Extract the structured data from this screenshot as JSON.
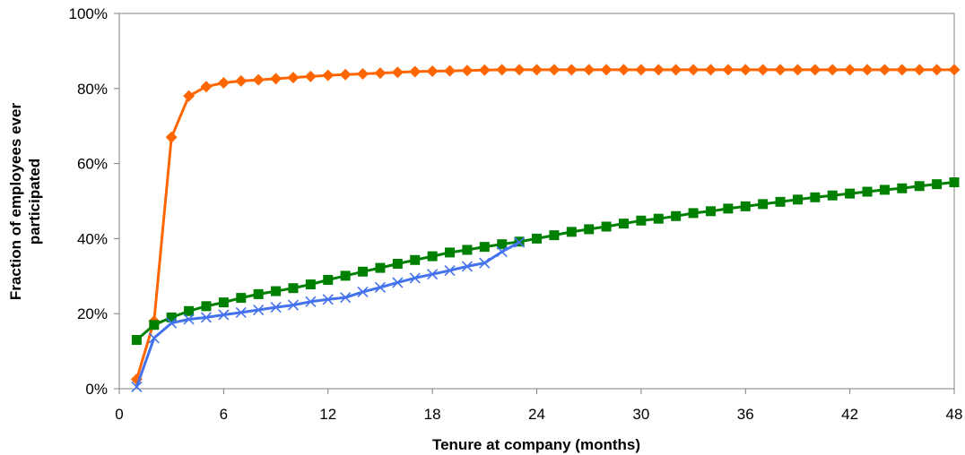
{
  "chart_data": {
    "type": "line",
    "xlabel": "Tenure at company (months)",
    "ylabel_lines": [
      "Fraction of employees ever",
      "participated"
    ],
    "xlim": [
      0,
      48
    ],
    "ylim": [
      0,
      100
    ],
    "x_ticks": [
      0,
      6,
      12,
      18,
      24,
      30,
      36,
      42,
      48
    ],
    "y_ticks": [
      0,
      20,
      40,
      60,
      80,
      100
    ],
    "y_tick_labels": [
      "0%",
      "20%",
      "40%",
      "60%",
      "80%",
      "100%"
    ],
    "grid": false,
    "legend": "none",
    "series": [
      {
        "color": "#FF6600",
        "marker": "diamond",
        "x": [
          1,
          2,
          3,
          4,
          5,
          6,
          7,
          8,
          9,
          10,
          11,
          12,
          13,
          14,
          15,
          16,
          17,
          18,
          19,
          20,
          21,
          22,
          23,
          24,
          25,
          26,
          27,
          28,
          29,
          30,
          31,
          32,
          33,
          34,
          35,
          36,
          37,
          38,
          39,
          40,
          41,
          42,
          43,
          44,
          45,
          46,
          47,
          48
        ],
        "values": [
          2.5,
          18,
          67,
          78,
          80.5,
          81.5,
          82,
          82.3,
          82.6,
          82.9,
          83.2,
          83.5,
          83.7,
          83.9,
          84.1,
          84.3,
          84.5,
          84.6,
          84.7,
          84.8,
          84.9,
          85,
          85,
          85,
          85,
          85,
          85,
          85,
          85,
          85,
          85,
          85,
          85,
          85,
          85,
          85,
          85,
          85,
          85,
          85,
          85,
          85,
          85,
          85,
          85,
          85,
          85,
          85
        ]
      },
      {
        "color": "#008000",
        "marker": "square",
        "x": [
          1,
          2,
          3,
          4,
          5,
          6,
          7,
          8,
          9,
          10,
          11,
          12,
          13,
          14,
          15,
          16,
          17,
          18,
          19,
          20,
          21,
          22,
          23,
          24,
          25,
          26,
          27,
          28,
          29,
          30,
          31,
          32,
          33,
          34,
          35,
          36,
          37,
          38,
          39,
          40,
          41,
          42,
          43,
          44,
          45,
          46,
          47,
          48
        ],
        "values": [
          13,
          17,
          19,
          20.7,
          22,
          23,
          24.2,
          25.2,
          26,
          26.8,
          27.8,
          29,
          30.1,
          31.2,
          32.2,
          33.3,
          34.3,
          35.3,
          36.3,
          37,
          37.8,
          38.5,
          39.2,
          40,
          40.9,
          41.8,
          42.5,
          43.2,
          44,
          44.8,
          45.3,
          46,
          46.8,
          47.3,
          48,
          48.6,
          49.2,
          49.8,
          50.4,
          51,
          51.5,
          52,
          52.5,
          53,
          53.4,
          54,
          54.5,
          55
        ]
      },
      {
        "color": "#4472EE",
        "marker": "x",
        "x": [
          1,
          2,
          3,
          4,
          5,
          6,
          7,
          8,
          9,
          10,
          11,
          12,
          13,
          14,
          15,
          16,
          17,
          18,
          19,
          20,
          21,
          22,
          23
        ],
        "values": [
          0.5,
          13.5,
          17.5,
          18.5,
          19,
          19.7,
          20.3,
          21,
          21.7,
          22.3,
          23.2,
          23.8,
          24.3,
          25.8,
          27,
          28.3,
          29.5,
          30.5,
          31.5,
          32.6,
          33.5,
          36.5,
          39
        ]
      }
    ]
  }
}
